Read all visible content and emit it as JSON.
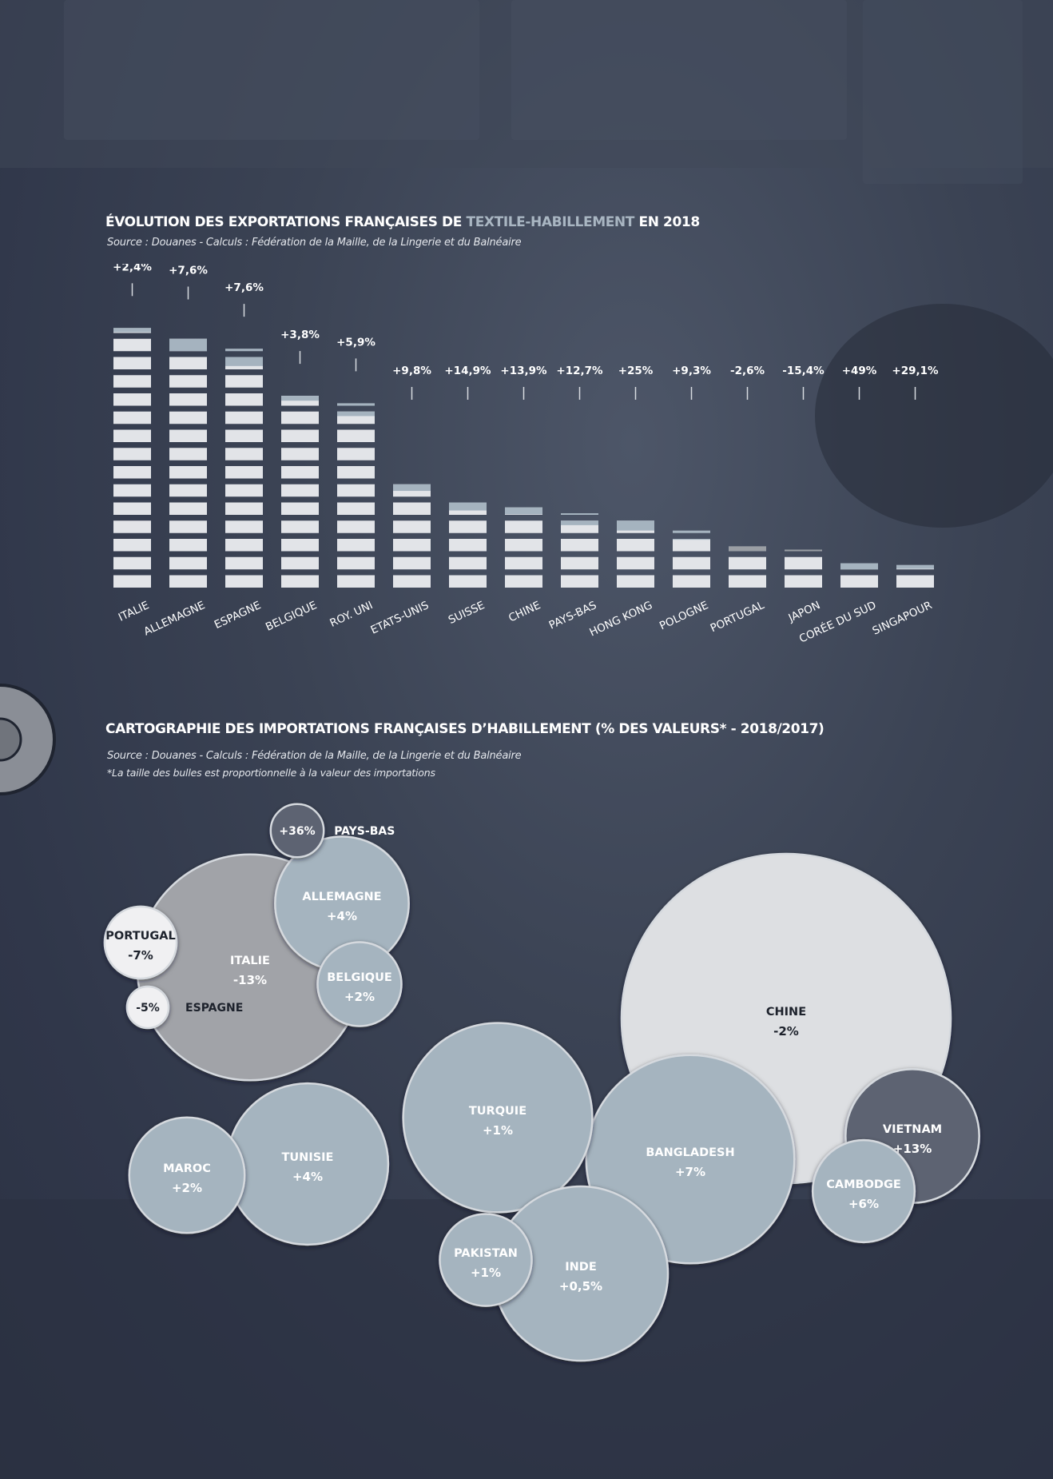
{
  "bar_chart": {
    "title_before": "ÉVOLUTION DES EXPORTATIONS FRANÇAISES DE",
    "title_highlight": "TEXTILE-HABILLEMENT",
    "title_after": "EN 2018",
    "source": "Source : Douanes - Calculs : Fédération de la Maille, de la Lingerie et du Balnéaire"
  },
  "bubble_chart": {
    "title": "CARTOGRAPHIE DES IMPORTATIONS FRANÇAISES D’HABILLEMENT (% DES VALEURS* - 2018/2017)",
    "source": "Source : Douanes - Calculs : Fédération de la Maille, de la Lingerie et du Balnéaire",
    "note": "*La taille des bulles est proportionnelle à la valeur des importations"
  },
  "colors": {
    "block": "#e2e4e8",
    "growth_block": "#a5b3bf",
    "decline_block": "#9a9ea4",
    "bubble_blue": "#a5b4bf",
    "bubble_gray": "#a1a3a8",
    "bubble_light": "#dddfe2",
    "bubble_dark": "#5d6472",
    "bubble_white": "#f0f0f2"
  },
  "chart_data": [
    {
      "type": "bar",
      "categories": [
        "ITALIE",
        "ALLEMAGNE",
        "ESPAGNE",
        "BELGIQUE",
        "ROY. UNI",
        "ETATS-UNIS",
        "SUISSE",
        "CHINE",
        "PAYS-BAS",
        "HONG KONG",
        "POLOGNE",
        "PORTUGAL",
        "JAPON",
        "CORÉE DU SUD",
        "SINGAPOUR"
      ],
      "values": [
        14.4,
        14.0,
        13.2,
        10.8,
        10.2,
        6.0,
        5.0,
        4.6,
        4.1,
        4.0,
        3.2,
        2.4,
        2.1,
        1.5,
        1.35
      ],
      "change_labels": [
        "+2,4%",
        "+7,6%",
        "+7,6%",
        "+3,8%",
        "+5,9%",
        "+9,8%",
        "+14,9%",
        "+13,9%",
        "+12,7%",
        "+25%",
        "+9,3%",
        "-2,6%",
        "-15,4%",
        "+49%",
        "+29,1%"
      ],
      "change_pct": [
        2.4,
        7.6,
        7.6,
        3.8,
        5.9,
        9.8,
        14.9,
        13.9,
        12.7,
        25,
        9.3,
        -2.6,
        -15.4,
        49,
        29.1
      ],
      "yaxis": "none (pictogram bars, no printed scale)"
    },
    {
      "type": "bubble",
      "bubbles": [
        {
          "name": "CHINE",
          "value_label": "-2%",
          "change_pct": -2,
          "style": "light",
          "size": 100
        },
        {
          "name": "ITALIE",
          "value_label": "-13%",
          "change_pct": -13,
          "style": "gray",
          "size": 47
        },
        {
          "name": "BANGLADESH",
          "value_label": "+7%",
          "change_pct": 7,
          "style": "blue",
          "size": 40
        },
        {
          "name": "TURQUIE",
          "value_label": "+1%",
          "change_pct": 1,
          "style": "blue",
          "size": 33
        },
        {
          "name": "INDE",
          "value_label": "+0,5%",
          "change_pct": 0.5,
          "style": "blue",
          "size": 28
        },
        {
          "name": "TUNISIE",
          "value_label": "+4%",
          "change_pct": 4,
          "style": "blue",
          "size": 24
        },
        {
          "name": "ALLEMAGNE",
          "value_label": "+4%",
          "change_pct": 4,
          "style": "blue",
          "size": 16.5
        },
        {
          "name": "VIETNAM",
          "value_label": "+13%",
          "change_pct": 13,
          "style": "dark",
          "size": 16.5
        },
        {
          "name": "MAROC",
          "value_label": "+2%",
          "change_pct": 2,
          "style": "blue",
          "size": 12.3
        },
        {
          "name": "CAMBODGE",
          "value_label": "+6%",
          "change_pct": 6,
          "style": "blue",
          "size": 9.6
        },
        {
          "name": "BELGIQUE",
          "value_label": "+2%",
          "change_pct": 2,
          "style": "blue",
          "size": 6.5
        },
        {
          "name": "PAKISTAN",
          "value_label": "+1%",
          "change_pct": 1,
          "style": "blue",
          "size": 7.8
        },
        {
          "name": "PORTUGAL",
          "value_label": "-7%",
          "change_pct": -7,
          "style": "white",
          "size": 4.8
        },
        {
          "name": "PAYS-BAS",
          "value_label": "+36%",
          "change_pct": 36,
          "style": "dark",
          "size": 2.6
        },
        {
          "name": "ESPAGNE",
          "value_label": "-5%",
          "change_pct": -5,
          "style": "white",
          "size": 1.6
        }
      ]
    }
  ]
}
